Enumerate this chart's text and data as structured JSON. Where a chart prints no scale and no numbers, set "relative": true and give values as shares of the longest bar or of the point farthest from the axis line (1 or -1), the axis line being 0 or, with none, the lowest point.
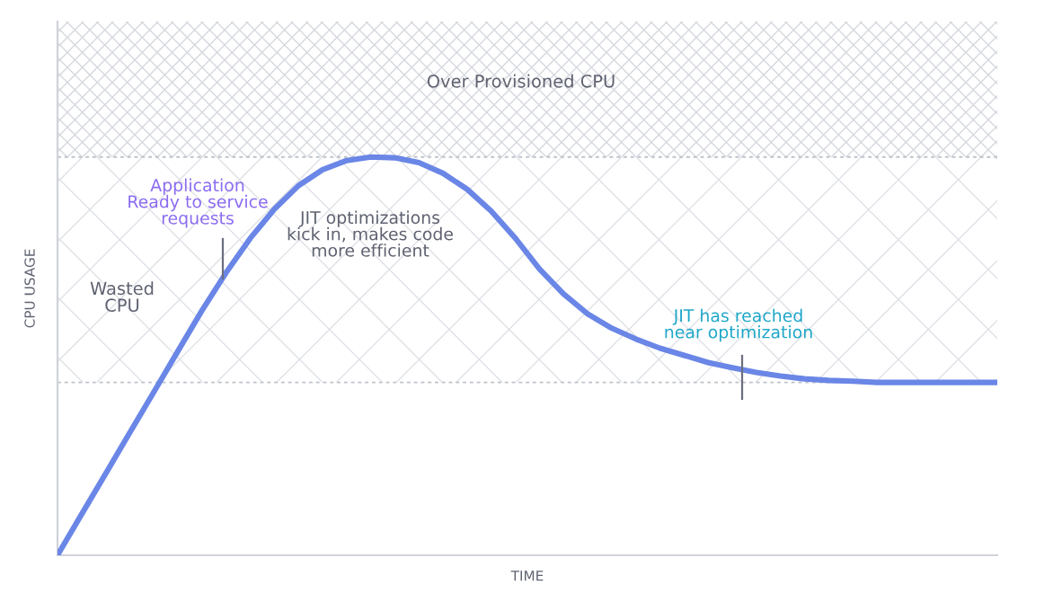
{
  "chart_data": {
    "type": "line",
    "relative": true,
    "xlabel": "TIME",
    "ylabel": "CPU USAGE",
    "categories": [
      null,
      null,
      null,
      null,
      null,
      null,
      null,
      null,
      null,
      null,
      null,
      null,
      null,
      null,
      null,
      null,
      null,
      null,
      null,
      null,
      null,
      null,
      null,
      null,
      null,
      null,
      null,
      null,
      null,
      null,
      null,
      null,
      null,
      null,
      null,
      null,
      null,
      null,
      null,
      null
    ],
    "series": [
      {
        "color": "#6a86e6",
        "values": [
          0,
          0.103,
          0.205,
          0.308,
          0.41,
          0.513,
          0.615,
          0.71,
          0.796,
          0.869,
          0.928,
          0.968,
          0.991,
          1.0,
          0.998,
          0.986,
          0.959,
          0.919,
          0.864,
          0.796,
          0.719,
          0.656,
          0.606,
          0.57,
          0.543,
          0.52,
          0.502,
          0.484,
          0.471,
          0.459,
          0.45,
          0.443,
          0.439,
          0.437,
          0.434,
          0.434,
          0.434,
          0.434,
          0.434,
          0.434
        ]
      }
    ],
    "bands": [
      {
        "axis": "y",
        "from": 1.0,
        "to": 1.34,
        "label": "Over Provisioned CPU",
        "color": "#d5d8de"
      },
      {
        "axis": "y",
        "from": 0.434,
        "to": 1.0,
        "label": "Wasted\nCPU",
        "color": "#dfe1e6"
      }
    ],
    "ref_lines": [
      {
        "axis": "y",
        "value": 1.0,
        "color": "#bfc3ca",
        "line_style": "dashed"
      },
      {
        "axis": "y",
        "value": 0.434,
        "color": "#bfc3ca",
        "line_style": "dashed"
      }
    ],
    "annotations": [
      "Application\nReady to service\nrequests",
      "JIT optimizations\nkick in, makes code\nmore efficient",
      "JIT has reached\nnear optimization"
    ],
    "legend": false
  }
}
